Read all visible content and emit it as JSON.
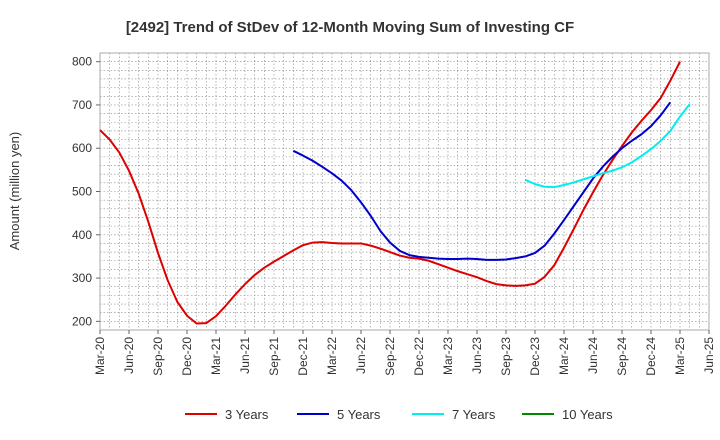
{
  "chart_data": {
    "type": "line",
    "title": "[2492]  Trend of StDev of 12-Month Moving Sum of Investing CF",
    "ylabel": "Amount (million yen)",
    "xlabel": "",
    "ylim": [
      180,
      820
    ],
    "yticks": [
      200,
      300,
      400,
      500,
      600,
      700,
      800
    ],
    "x_tick_labels": [
      "Mar-20",
      "Jun-20",
      "Sep-20",
      "Dec-20",
      "Mar-21",
      "Jun-21",
      "Sep-21",
      "Dec-21",
      "Mar-22",
      "Jun-22",
      "Sep-22",
      "Dec-22",
      "Mar-23",
      "Jun-23",
      "Sep-23",
      "Dec-23",
      "Mar-24",
      "Jun-24",
      "Sep-24",
      "Dec-24",
      "Mar-25",
      "Jun-25"
    ],
    "grid": true,
    "legend_position": "bottom",
    "series": [
      {
        "name": "3 Years",
        "color": "#dd0000",
        "start": "Mar-20",
        "values": [
          642,
          620,
          590,
          548,
          495,
          430,
          358,
          295,
          245,
          213,
          195,
          196,
          212,
          236,
          262,
          286,
          307,
          324,
          338,
          351,
          364,
          376,
          382,
          383,
          381,
          380,
          380,
          380,
          375,
          368,
          360,
          352,
          347,
          345,
          340,
          332,
          324,
          316,
          309,
          302,
          293,
          286,
          283,
          282,
          283,
          287,
          303,
          330,
          370,
          413,
          457,
          498,
          537,
          572,
          605,
          636,
          663,
          688,
          716,
          756,
          800
        ]
      },
      {
        "name": "5 Years",
        "color": "#0000cc",
        "start": "Nov-21",
        "values": [
          594,
          583,
          571,
          557,
          542,
          525,
          503,
          475,
          444,
          409,
          382,
          363,
          353,
          349,
          347,
          345,
          344,
          344,
          345,
          344,
          342,
          342,
          343,
          346,
          350,
          358,
          375,
          403,
          434,
          466,
          498,
          530,
          557,
          580,
          600,
          617,
          632,
          651,
          676,
          706
        ]
      },
      {
        "name": "7 Years",
        "color": "#00eeee",
        "start": "Nov-23",
        "values": [
          527,
          517,
          511,
          510,
          515,
          521,
          528,
          535,
          542,
          548,
          556,
          567,
          582,
          598,
          617,
          640,
          673,
          702
        ]
      },
      {
        "name": "10 Years",
        "color": "#008800",
        "start": "",
        "values": []
      }
    ]
  }
}
